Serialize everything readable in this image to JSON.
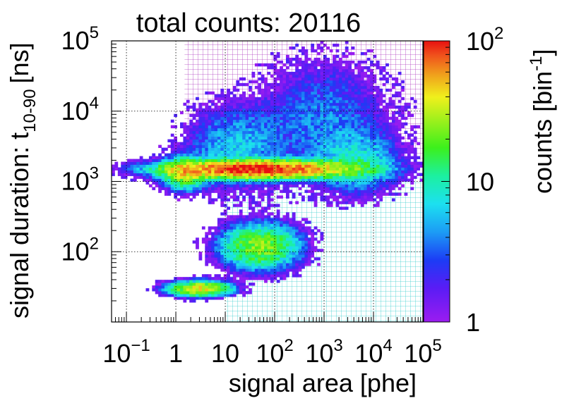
{
  "chart_data": {
    "type": "heatmap",
    "title": "total counts: 20116",
    "xlabel": "signal area [phe]",
    "ylabel": "signal duration: t",
    "ylabel_subscript": "10-90",
    "ylabel_unit": "[ns]",
    "colorbar_label": "counts [bin",
    "colorbar_label_sup": "-1",
    "colorbar_label_end": "]",
    "x_scale": "log",
    "y_scale": "log",
    "z_scale": "log",
    "xlim": [
      0.05,
      100000
    ],
    "ylim": [
      10,
      100000
    ],
    "zlim": [
      1,
      100
    ],
    "grid": true,
    "colormap": "rainbow (violet-blue-cyan-green-yellow-red)",
    "x_ticks": [
      {
        "value": 0.1,
        "base": "10",
        "exp": "−1"
      },
      {
        "value": 1,
        "base": "1",
        "exp": ""
      },
      {
        "value": 10,
        "base": "10",
        "exp": ""
      },
      {
        "value": 100,
        "base": "10",
        "exp": "2"
      },
      {
        "value": 1000,
        "base": "10",
        "exp": "3"
      },
      {
        "value": 10000,
        "base": "10",
        "exp": "4"
      },
      {
        "value": 100000,
        "base": "10",
        "exp": "5"
      }
    ],
    "y_ticks": [
      {
        "value": 100,
        "base": "10",
        "exp": "2"
      },
      {
        "value": 1000,
        "base": "10",
        "exp": "3"
      },
      {
        "value": 10000,
        "base": "10",
        "exp": "4"
      },
      {
        "value": 100000,
        "base": "10",
        "exp": "5"
      }
    ],
    "colorbar_ticks": [
      {
        "value": 1,
        "base": "1",
        "exp": ""
      },
      {
        "value": 10,
        "base": "10",
        "exp": ""
      },
      {
        "value": 100,
        "base": "10",
        "exp": "2"
      }
    ],
    "regions": [
      {
        "name": "upper hatched region",
        "color": "#b040c0",
        "x_range": [
          1.5,
          100000
        ],
        "y_range": [
          2000,
          100000
        ]
      },
      {
        "name": "lower hatched region",
        "color": "#40d0d0",
        "x_range": [
          10,
          100000
        ],
        "y_range": [
          10,
          1200
        ]
      }
    ],
    "clusters": [
      {
        "x": 50,
        "y": 1500,
        "peak_counts": 100,
        "spread_x": 1.0,
        "spread_y": 0.07
      },
      {
        "x": 1.5,
        "y": 1300,
        "peak_counts": 30,
        "spread_x": 0.25,
        "spread_y": 0.12
      },
      {
        "x": 3,
        "y": 30,
        "peak_counts": 40,
        "spread_x": 0.35,
        "spread_y": 0.06
      },
      {
        "x": 50,
        "y": 120,
        "peak_counts": 25,
        "spread_x": 0.45,
        "spread_y": 0.18
      },
      {
        "x": 15,
        "y": 3000,
        "peak_counts": 6,
        "spread_x": 0.6,
        "spread_y": 0.35
      },
      {
        "x": 1000,
        "y": 8000,
        "peak_counts": 4,
        "spread_x": 0.8,
        "spread_y": 0.5
      },
      {
        "x": 5000,
        "y": 1800,
        "peak_counts": 8,
        "spread_x": 0.5,
        "spread_y": 0.25
      }
    ]
  }
}
